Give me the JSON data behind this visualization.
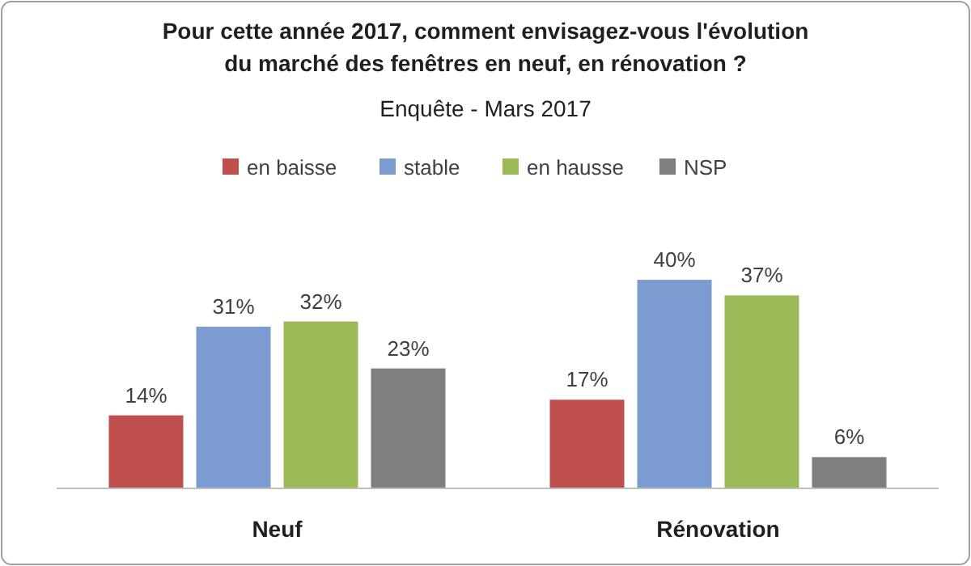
{
  "chart_data": {
    "type": "bar",
    "title": "Pour cette année 2017, comment envisagez-vous  l'évolution\ndu marché des fenêtres en neuf, en rénovation ?",
    "subtitle": "Enquête - Mars 2017",
    "categories": [
      "Neuf",
      "Rénovation"
    ],
    "legend": "top",
    "grid": false,
    "series": [
      {
        "name": "en baisse",
        "color": "#c0504d",
        "values": [
          14,
          17
        ],
        "value_labels": [
          "14%",
          "17%"
        ]
      },
      {
        "name": "stable",
        "color": "#7b9bd1",
        "values": [
          31,
          40
        ],
        "value_labels": [
          "31%",
          "40%"
        ]
      },
      {
        "name": "en hausse",
        "color": "#9bbb59",
        "values": [
          32,
          37
        ],
        "value_labels": [
          "32%",
          "37%"
        ]
      },
      {
        "name": "NSP",
        "color": "#7f7f7f",
        "values": [
          23,
          6
        ],
        "value_labels": [
          "23%",
          "6%"
        ]
      }
    ]
  }
}
